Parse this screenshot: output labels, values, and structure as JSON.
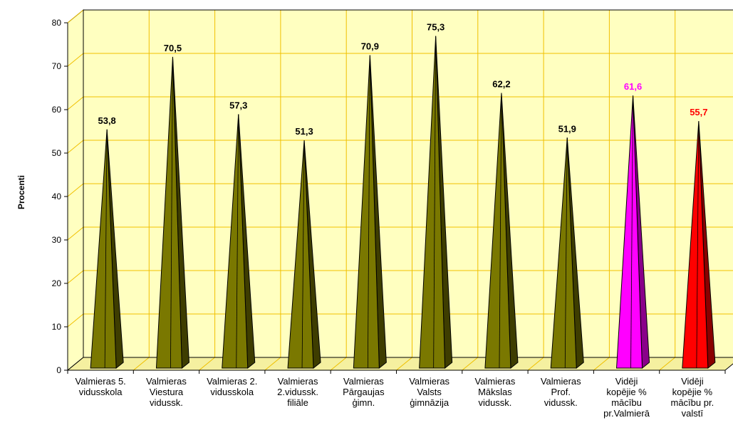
{
  "chart_data": {
    "type": "bar",
    "title": "",
    "xlabel": "",
    "ylabel": "Procenti",
    "ylim": [
      0,
      80
    ],
    "yticks": [
      0,
      10,
      20,
      30,
      40,
      50,
      60,
      70,
      80
    ],
    "grid": true,
    "categories": [
      [
        "Valmieras 5.",
        "vidusskola"
      ],
      [
        "Valmieras",
        "Viestura",
        "vidussk."
      ],
      [
        "Valmieras 2.",
        "vidusskola"
      ],
      [
        "Valmieras",
        "2.vidussk.",
        "filiāle"
      ],
      [
        "Valmieras",
        "Pārgaujas",
        "ģimn."
      ],
      [
        "Valmieras",
        "Valsts",
        "ģimnāzija"
      ],
      [
        "Valmieras",
        "Mākslas",
        "vidussk."
      ],
      [
        "Valmieras",
        "Prof.",
        "vidussk."
      ],
      [
        "Vidēji",
        "kopējie %",
        "mācību",
        "pr.Valmierā"
      ],
      [
        "Vidēji",
        "kopējie %",
        "mācību pr.",
        "valstī"
      ]
    ],
    "values": [
      53.8,
      70.5,
      57.3,
      51.3,
      70.9,
      75.3,
      62.2,
      51.9,
      61.6,
      55.7
    ],
    "data_labels": [
      "53,8",
      "70,5",
      "57,3",
      "51,3",
      "70,9",
      "75,3",
      "62,2",
      "51,9",
      "61,6",
      "55,7"
    ],
    "bar_colors": [
      "#7a7800",
      "#7a7800",
      "#7a7800",
      "#7a7800",
      "#7a7800",
      "#7a7800",
      "#7a7800",
      "#7a7800",
      "#ff00ff",
      "#ff0000"
    ],
    "bar_shade_colors": [
      "#3e3d00",
      "#3e3d00",
      "#3e3d00",
      "#3e3d00",
      "#3e3d00",
      "#3e3d00",
      "#3e3d00",
      "#3e3d00",
      "#8a008a",
      "#8a0000"
    ],
    "label_colors": [
      "#000000",
      "#000000",
      "#000000",
      "#000000",
      "#000000",
      "#000000",
      "#000000",
      "#000000",
      "#ff00ff",
      "#ff0000"
    ],
    "plot_background": "#ffffc0",
    "floor_color": "#f5f0a0",
    "gridline_color": "#f0c000"
  }
}
